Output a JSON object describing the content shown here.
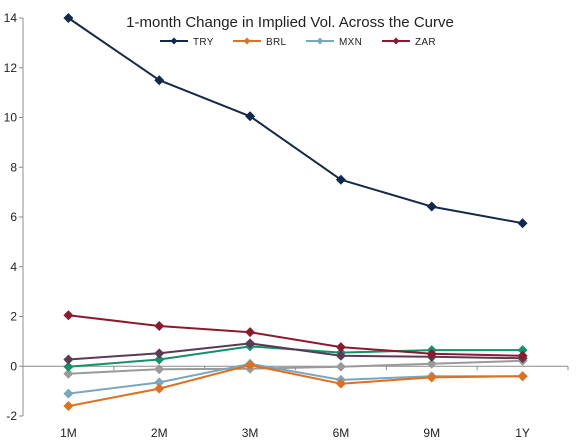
{
  "chart_data": {
    "type": "line",
    "title": "1-month Change in Implied Vol. Across the Curve",
    "xlabel": "",
    "ylabel": "",
    "categories": [
      "1M",
      "2M",
      "3M",
      "6M",
      "9M",
      "1Y"
    ],
    "ylim": [
      -2,
      14
    ],
    "yticks": [
      -2,
      0,
      2,
      4,
      6,
      8,
      10,
      12,
      14
    ],
    "grid": false,
    "legend_position": "top",
    "series": [
      {
        "name": "TRY",
        "color": "#13294b",
        "values": [
          14.0,
          11.5,
          10.05,
          7.5,
          6.42,
          5.75
        ],
        "in_legend": true
      },
      {
        "name": "BRL",
        "color": "#e07020",
        "values": [
          -1.6,
          -0.9,
          0.05,
          -0.7,
          -0.45,
          -0.4
        ],
        "in_legend": true
      },
      {
        "name": "MXN",
        "color": "#7aa6bf",
        "values": [
          -1.1,
          -0.65,
          0.1,
          -0.55,
          -0.4,
          -0.4
        ],
        "in_legend": true
      },
      {
        "name": "ZAR",
        "color": "#8b1a2e",
        "values": [
          2.05,
          1.62,
          1.37,
          0.77,
          0.5,
          0.42
        ],
        "in_legend": true
      },
      {
        "name": "",
        "color": "#5a3a55",
        "values": [
          0.27,
          0.52,
          0.92,
          0.42,
          0.38,
          0.32
        ],
        "in_legend": false
      },
      {
        "name": "",
        "color": "#13916b",
        "values": [
          -0.02,
          0.27,
          0.8,
          0.55,
          0.65,
          0.65
        ],
        "in_legend": false
      },
      {
        "name": "",
        "color": "#9a9a9a",
        "values": [
          -0.3,
          -0.12,
          -0.1,
          -0.02,
          0.1,
          0.22
        ],
        "in_legend": false
      }
    ]
  }
}
